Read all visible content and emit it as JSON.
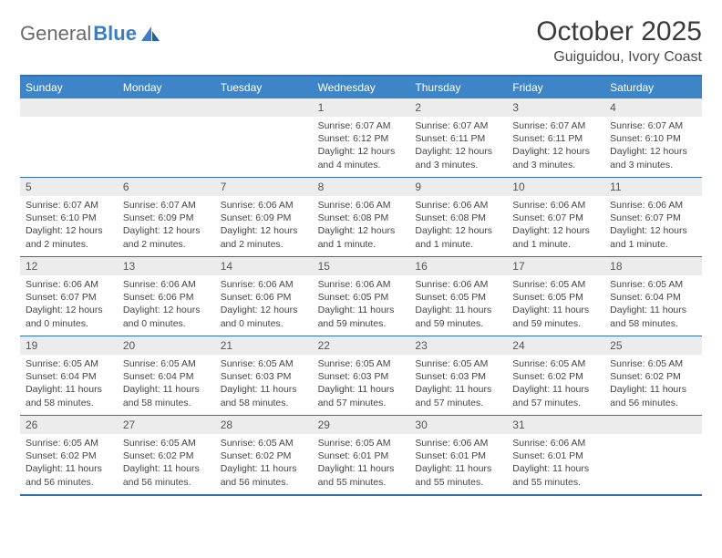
{
  "logo": {
    "text1": "General",
    "text2": "Blue"
  },
  "title": "October 2025",
  "location": "Guiguidou, Ivory Coast",
  "colors": {
    "header_bg": "#3d85c6",
    "border": "#2f6fb3",
    "daynum_bg": "#ececec",
    "logo_blue": "#3d7cc9"
  },
  "day_names": [
    "Sunday",
    "Monday",
    "Tuesday",
    "Wednesday",
    "Thursday",
    "Friday",
    "Saturday"
  ],
  "weeks": [
    [
      {
        "n": "",
        "empty": true
      },
      {
        "n": "",
        "empty": true
      },
      {
        "n": "",
        "empty": true
      },
      {
        "n": "1",
        "sr": "Sunrise: 6:07 AM",
        "ss": "Sunset: 6:12 PM",
        "dl1": "Daylight: 12 hours",
        "dl2": "and 4 minutes."
      },
      {
        "n": "2",
        "sr": "Sunrise: 6:07 AM",
        "ss": "Sunset: 6:11 PM",
        "dl1": "Daylight: 12 hours",
        "dl2": "and 3 minutes."
      },
      {
        "n": "3",
        "sr": "Sunrise: 6:07 AM",
        "ss": "Sunset: 6:11 PM",
        "dl1": "Daylight: 12 hours",
        "dl2": "and 3 minutes."
      },
      {
        "n": "4",
        "sr": "Sunrise: 6:07 AM",
        "ss": "Sunset: 6:10 PM",
        "dl1": "Daylight: 12 hours",
        "dl2": "and 3 minutes."
      }
    ],
    [
      {
        "n": "5",
        "sr": "Sunrise: 6:07 AM",
        "ss": "Sunset: 6:10 PM",
        "dl1": "Daylight: 12 hours",
        "dl2": "and 2 minutes."
      },
      {
        "n": "6",
        "sr": "Sunrise: 6:07 AM",
        "ss": "Sunset: 6:09 PM",
        "dl1": "Daylight: 12 hours",
        "dl2": "and 2 minutes."
      },
      {
        "n": "7",
        "sr": "Sunrise: 6:06 AM",
        "ss": "Sunset: 6:09 PM",
        "dl1": "Daylight: 12 hours",
        "dl2": "and 2 minutes."
      },
      {
        "n": "8",
        "sr": "Sunrise: 6:06 AM",
        "ss": "Sunset: 6:08 PM",
        "dl1": "Daylight: 12 hours",
        "dl2": "and 1 minute."
      },
      {
        "n": "9",
        "sr": "Sunrise: 6:06 AM",
        "ss": "Sunset: 6:08 PM",
        "dl1": "Daylight: 12 hours",
        "dl2": "and 1 minute."
      },
      {
        "n": "10",
        "sr": "Sunrise: 6:06 AM",
        "ss": "Sunset: 6:07 PM",
        "dl1": "Daylight: 12 hours",
        "dl2": "and 1 minute."
      },
      {
        "n": "11",
        "sr": "Sunrise: 6:06 AM",
        "ss": "Sunset: 6:07 PM",
        "dl1": "Daylight: 12 hours",
        "dl2": "and 1 minute."
      }
    ],
    [
      {
        "n": "12",
        "sr": "Sunrise: 6:06 AM",
        "ss": "Sunset: 6:07 PM",
        "dl1": "Daylight: 12 hours",
        "dl2": "and 0 minutes."
      },
      {
        "n": "13",
        "sr": "Sunrise: 6:06 AM",
        "ss": "Sunset: 6:06 PM",
        "dl1": "Daylight: 12 hours",
        "dl2": "and 0 minutes."
      },
      {
        "n": "14",
        "sr": "Sunrise: 6:06 AM",
        "ss": "Sunset: 6:06 PM",
        "dl1": "Daylight: 12 hours",
        "dl2": "and 0 minutes."
      },
      {
        "n": "15",
        "sr": "Sunrise: 6:06 AM",
        "ss": "Sunset: 6:05 PM",
        "dl1": "Daylight: 11 hours",
        "dl2": "and 59 minutes."
      },
      {
        "n": "16",
        "sr": "Sunrise: 6:06 AM",
        "ss": "Sunset: 6:05 PM",
        "dl1": "Daylight: 11 hours",
        "dl2": "and 59 minutes."
      },
      {
        "n": "17",
        "sr": "Sunrise: 6:05 AM",
        "ss": "Sunset: 6:05 PM",
        "dl1": "Daylight: 11 hours",
        "dl2": "and 59 minutes."
      },
      {
        "n": "18",
        "sr": "Sunrise: 6:05 AM",
        "ss": "Sunset: 6:04 PM",
        "dl1": "Daylight: 11 hours",
        "dl2": "and 58 minutes."
      }
    ],
    [
      {
        "n": "19",
        "sr": "Sunrise: 6:05 AM",
        "ss": "Sunset: 6:04 PM",
        "dl1": "Daylight: 11 hours",
        "dl2": "and 58 minutes."
      },
      {
        "n": "20",
        "sr": "Sunrise: 6:05 AM",
        "ss": "Sunset: 6:04 PM",
        "dl1": "Daylight: 11 hours",
        "dl2": "and 58 minutes."
      },
      {
        "n": "21",
        "sr": "Sunrise: 6:05 AM",
        "ss": "Sunset: 6:03 PM",
        "dl1": "Daylight: 11 hours",
        "dl2": "and 58 minutes."
      },
      {
        "n": "22",
        "sr": "Sunrise: 6:05 AM",
        "ss": "Sunset: 6:03 PM",
        "dl1": "Daylight: 11 hours",
        "dl2": "and 57 minutes."
      },
      {
        "n": "23",
        "sr": "Sunrise: 6:05 AM",
        "ss": "Sunset: 6:03 PM",
        "dl1": "Daylight: 11 hours",
        "dl2": "and 57 minutes."
      },
      {
        "n": "24",
        "sr": "Sunrise: 6:05 AM",
        "ss": "Sunset: 6:02 PM",
        "dl1": "Daylight: 11 hours",
        "dl2": "and 57 minutes."
      },
      {
        "n": "25",
        "sr": "Sunrise: 6:05 AM",
        "ss": "Sunset: 6:02 PM",
        "dl1": "Daylight: 11 hours",
        "dl2": "and 56 minutes."
      }
    ],
    [
      {
        "n": "26",
        "sr": "Sunrise: 6:05 AM",
        "ss": "Sunset: 6:02 PM",
        "dl1": "Daylight: 11 hours",
        "dl2": "and 56 minutes."
      },
      {
        "n": "27",
        "sr": "Sunrise: 6:05 AM",
        "ss": "Sunset: 6:02 PM",
        "dl1": "Daylight: 11 hours",
        "dl2": "and 56 minutes."
      },
      {
        "n": "28",
        "sr": "Sunrise: 6:05 AM",
        "ss": "Sunset: 6:02 PM",
        "dl1": "Daylight: 11 hours",
        "dl2": "and 56 minutes."
      },
      {
        "n": "29",
        "sr": "Sunrise: 6:05 AM",
        "ss": "Sunset: 6:01 PM",
        "dl1": "Daylight: 11 hours",
        "dl2": "and 55 minutes."
      },
      {
        "n": "30",
        "sr": "Sunrise: 6:06 AM",
        "ss": "Sunset: 6:01 PM",
        "dl1": "Daylight: 11 hours",
        "dl2": "and 55 minutes."
      },
      {
        "n": "31",
        "sr": "Sunrise: 6:06 AM",
        "ss": "Sunset: 6:01 PM",
        "dl1": "Daylight: 11 hours",
        "dl2": "and 55 minutes."
      },
      {
        "n": "",
        "empty": true
      }
    ]
  ]
}
